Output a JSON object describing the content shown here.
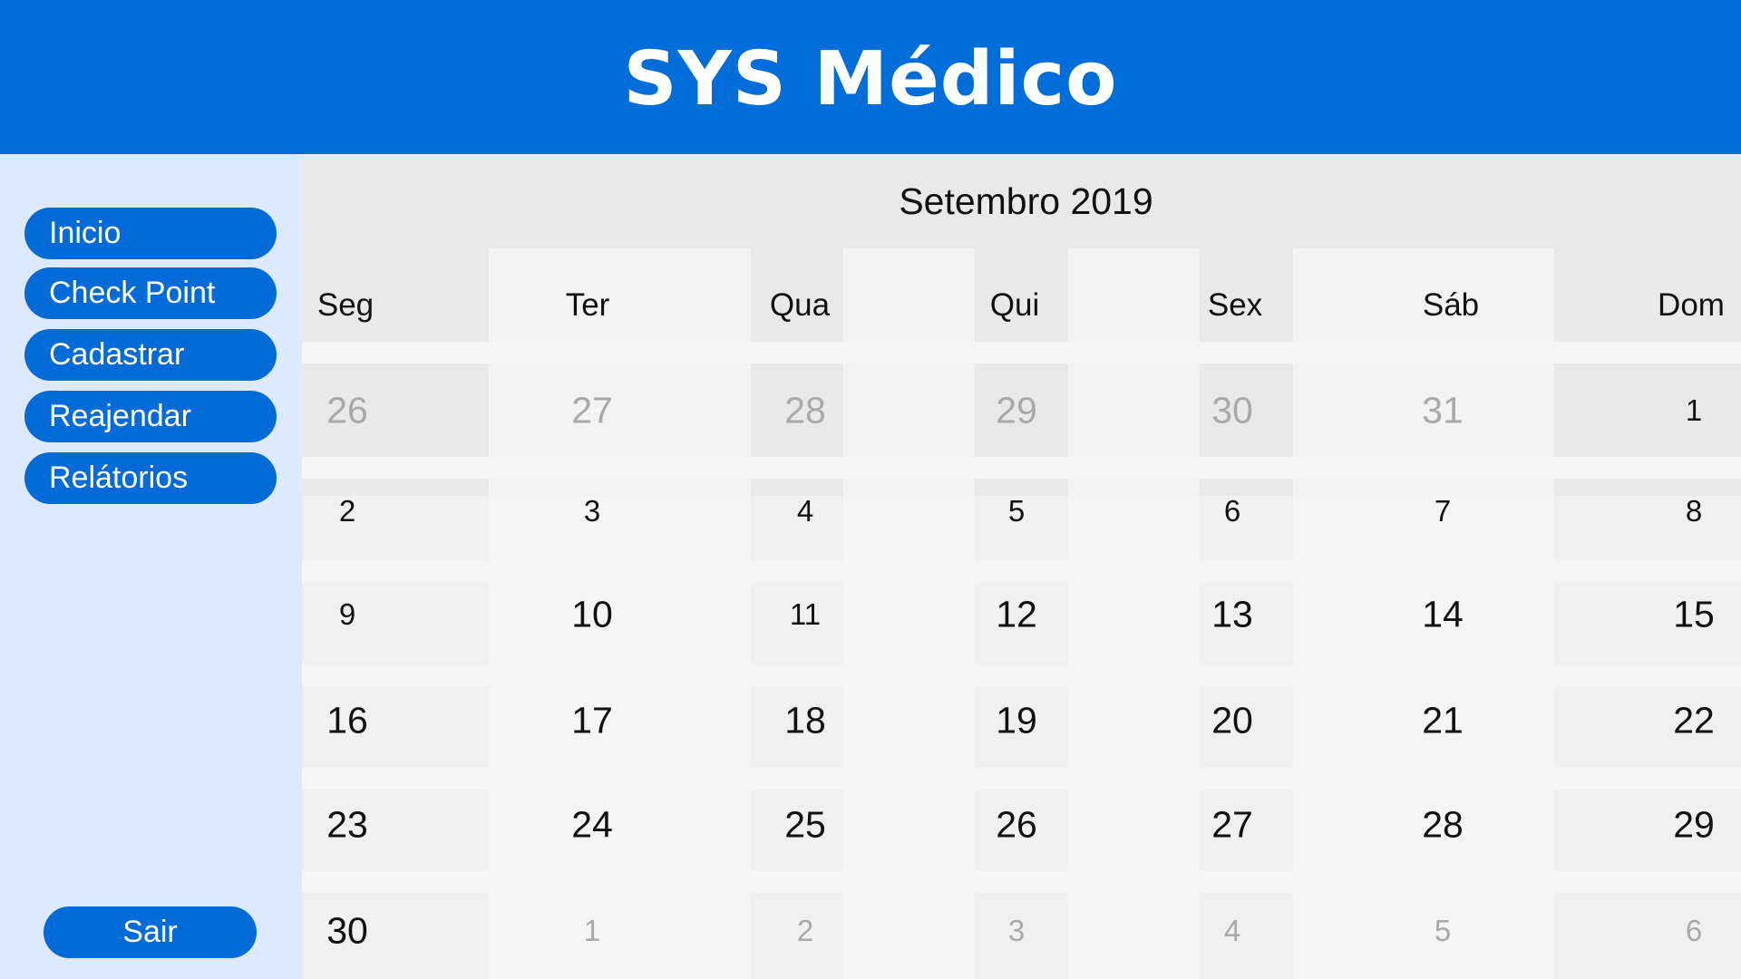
{
  "app": {
    "title": "SYS Médico",
    "accent_color": "#016dd8",
    "sidebar_color": "#dde9fe"
  },
  "sidebar": {
    "items": [
      {
        "label": "Inicio"
      },
      {
        "label": "Check Point"
      },
      {
        "label": "Cadastrar"
      },
      {
        "label": "Reajendar"
      },
      {
        "label": "Relátorios"
      }
    ],
    "logout_label": "Sair"
  },
  "calendar": {
    "month_label": "Setembro 2019",
    "weekdays": [
      "Seg",
      "Ter",
      "Qua",
      "Qui",
      "Sex",
      "Sáb",
      "Dom"
    ],
    "weeks": [
      [
        {
          "day": "26",
          "current_month": false
        },
        {
          "day": "27",
          "current_month": false
        },
        {
          "day": "28",
          "current_month": false
        },
        {
          "day": "29",
          "current_month": false
        },
        {
          "day": "30",
          "current_month": false
        },
        {
          "day": "31",
          "current_month": false
        },
        {
          "day": "1",
          "current_month": true
        }
      ],
      [
        {
          "day": "2",
          "current_month": true
        },
        {
          "day": "3",
          "current_month": true
        },
        {
          "day": "4",
          "current_month": true
        },
        {
          "day": "5",
          "current_month": true
        },
        {
          "day": "6",
          "current_month": true
        },
        {
          "day": "7",
          "current_month": true
        },
        {
          "day": "8",
          "current_month": true
        }
      ],
      [
        {
          "day": "9",
          "current_month": true
        },
        {
          "day": "10",
          "current_month": true
        },
        {
          "day": "11",
          "current_month": true
        },
        {
          "day": "12",
          "current_month": true
        },
        {
          "day": "13",
          "current_month": true
        },
        {
          "day": "14",
          "current_month": true
        },
        {
          "day": "15",
          "current_month": true
        }
      ],
      [
        {
          "day": "16",
          "current_month": true
        },
        {
          "day": "17",
          "current_month": true
        },
        {
          "day": "18",
          "current_month": true
        },
        {
          "day": "19",
          "current_month": true
        },
        {
          "day": "20",
          "current_month": true
        },
        {
          "day": "21",
          "current_month": true
        },
        {
          "day": "22",
          "current_month": true
        }
      ],
      [
        {
          "day": "23",
          "current_month": true
        },
        {
          "day": "24",
          "current_month": true
        },
        {
          "day": "25",
          "current_month": true
        },
        {
          "day": "26",
          "current_month": true
        },
        {
          "day": "27",
          "current_month": true
        },
        {
          "day": "28",
          "current_month": true
        },
        {
          "day": "29",
          "current_month": true
        }
      ],
      [
        {
          "day": "30",
          "current_month": true
        },
        {
          "day": "1",
          "current_month": false
        },
        {
          "day": "2",
          "current_month": false
        },
        {
          "day": "3",
          "current_month": false
        },
        {
          "day": "4",
          "current_month": false
        },
        {
          "day": "5",
          "current_month": false
        },
        {
          "day": "6",
          "current_month": false
        }
      ]
    ]
  }
}
